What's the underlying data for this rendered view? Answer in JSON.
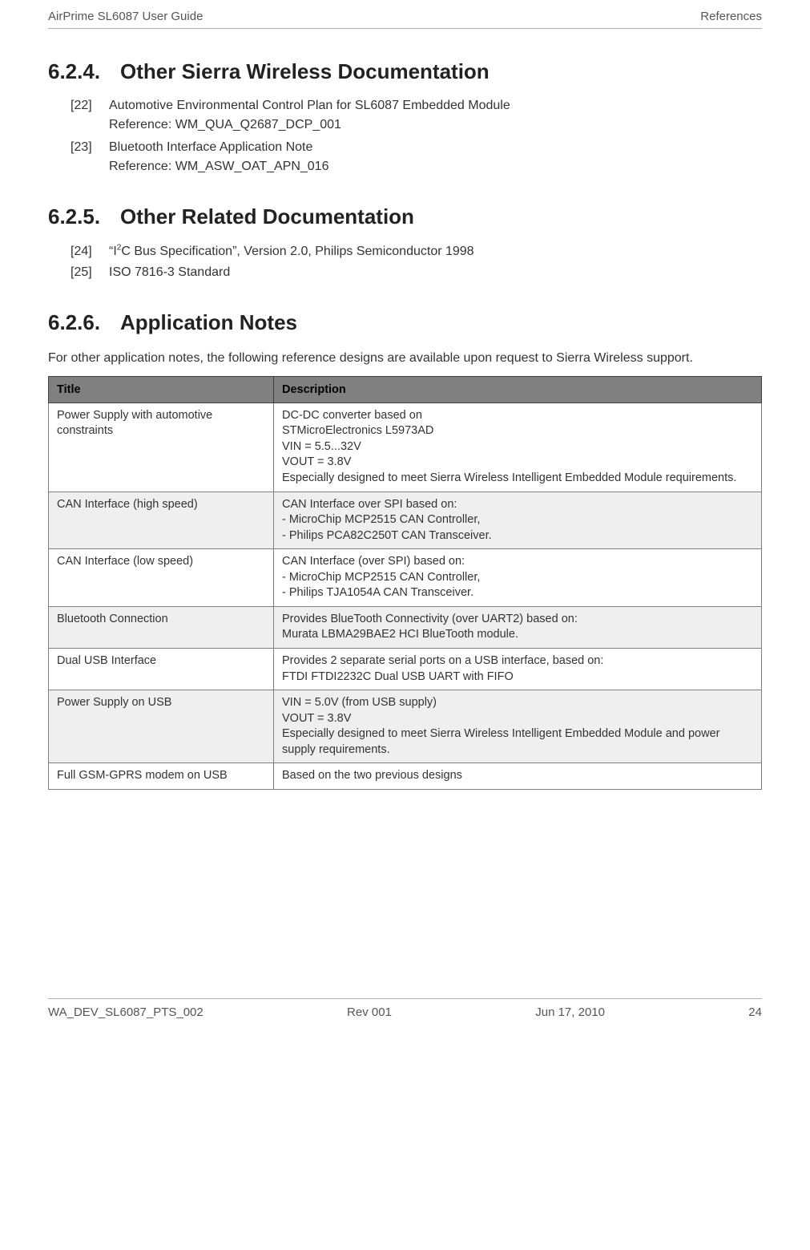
{
  "header": {
    "left": "AirPrime SL6087 User Guide",
    "right": "References"
  },
  "sections": {
    "s1": {
      "number": "6.2.4.",
      "title": "Other Sierra Wireless Documentation"
    },
    "s2": {
      "number": "6.2.5.",
      "title": "Other Related Documentation"
    },
    "s3": {
      "number": "6.2.6.",
      "title": "Application Notes"
    }
  },
  "refs": {
    "r22": {
      "num": "[22]",
      "text": "Automotive Environmental Control Plan for SL6087 Embedded Module",
      "sub": "Reference: WM_QUA_Q2687_DCP_001"
    },
    "r23": {
      "num": "[23]",
      "text": "Bluetooth Interface Application Note",
      "sub": "Reference: WM_ASW_OAT_APN_016"
    },
    "r24": {
      "num": "[24]",
      "text_prefix": "“I",
      "text_sup": "2",
      "text_suffix": "C Bus Specification”, Version 2.0, Philips Semiconductor 1998"
    },
    "r25": {
      "num": "[25]",
      "text": "ISO 7816-3 Standard"
    }
  },
  "app_notes_intro": "For other application notes, the following reference designs are available upon request to Sierra Wireless support.",
  "table": {
    "headers": {
      "title": "Title",
      "description": "Description"
    },
    "rows": [
      {
        "title": "Power Supply with automotive constraints",
        "desc": "DC-DC converter based on\nSTMicroElectronics L5973AD\nVIN   = 5.5...32V\nVOUT = 3.8V\nEspecially designed to meet Sierra Wireless Intelligent Embedded Module requirements."
      },
      {
        "title": "CAN Interface (high speed)",
        "desc": "CAN Interface over SPI based on:\n- MicroChip MCP2515 CAN Controller,\n- Philips PCA82C250T CAN Transceiver."
      },
      {
        "title": "CAN Interface (low speed)",
        "desc": "CAN Interface (over SPI) based on:\n- MicroChip MCP2515 CAN Controller,\n- Philips TJA1054A CAN Transceiver."
      },
      {
        "title": "Bluetooth  Connection",
        "desc": "Provides BlueTooth Connectivity (over UART2) based on:\nMurata LBMA29BAE2 HCI BlueTooth module."
      },
      {
        "title": "Dual USB Interface",
        "desc": "Provides 2 separate serial ports on a USB interface, based on:\nFTDI FTDI2232C Dual USB UART with FIFO"
      },
      {
        "title": "Power Supply on USB",
        "desc": "VIN   =  5.0V (from USB supply)\nVOUT = 3.8V\nEspecially designed to meet Sierra Wireless Intelligent Embedded Module and power supply requirements."
      },
      {
        "title": "Full GSM-GPRS modem on USB",
        "desc": "Based on the two previous designs"
      }
    ]
  },
  "footer": {
    "doc_id": "WA_DEV_SL6087_PTS_002",
    "rev": "Rev 001",
    "date": "Jun 17, 2010",
    "page": "24"
  }
}
